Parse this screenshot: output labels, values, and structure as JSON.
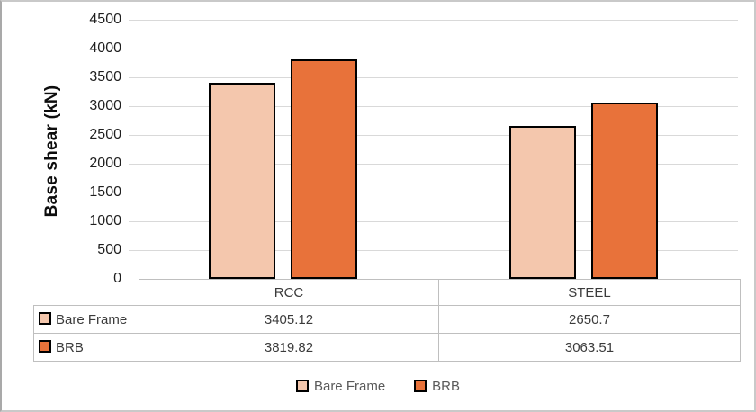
{
  "chart_data": {
    "type": "bar",
    "title": "",
    "ylabel": "Base shear (kN)",
    "xlabel": "",
    "categories": [
      "RCC",
      "STEEL"
    ],
    "series": [
      {
        "name": "Bare Frame",
        "values": [
          3405.12,
          2650.7
        ],
        "display": [
          "3405.12",
          "2650.7"
        ],
        "fill": "#f4c7ad",
        "border": "#000000"
      },
      {
        "name": "BRB",
        "values": [
          3819.82,
          3063.51
        ],
        "display": [
          "3819.82",
          "3063.51"
        ],
        "fill": "#e8723a",
        "border": "#000000"
      }
    ],
    "ylim": [
      0,
      4500
    ],
    "ytick_step": 500,
    "grid": true,
    "gridline_color": "#d9d9d9",
    "legend_position": "bottom",
    "data_table_shown": true
  }
}
